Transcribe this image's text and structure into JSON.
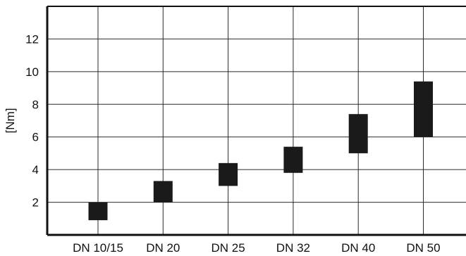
{
  "chart_data": {
    "type": "bar",
    "subtype": "floating-range",
    "categories": [
      "DN 10/15",
      "DN 20",
      "DN 25",
      "DN 32",
      "DN 40",
      "DN 50"
    ],
    "series": [
      {
        "ranges": [
          [
            0.9,
            2.0
          ],
          [
            2.0,
            3.3
          ],
          [
            3.0,
            4.4
          ],
          [
            3.8,
            5.4
          ],
          [
            5.0,
            7.4
          ],
          [
            6.0,
            9.4
          ]
        ]
      }
    ],
    "xlabel": "",
    "ylabel": "[Nm]",
    "ylim": [
      0,
      14
    ],
    "yticks": [
      2,
      4,
      6,
      8,
      10,
      12
    ],
    "grid": true,
    "bar_color": "#1a1a1a",
    "grid_color": "#2b2b2b"
  }
}
